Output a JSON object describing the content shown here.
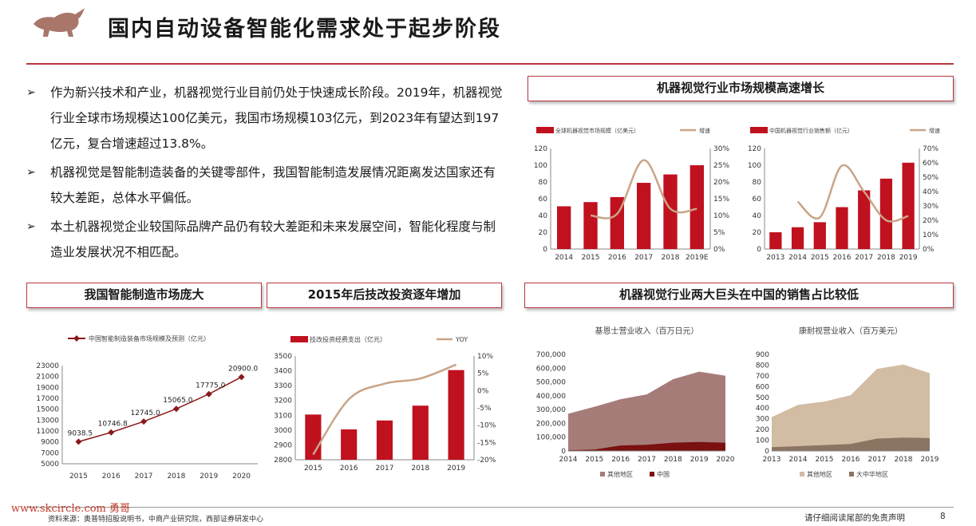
{
  "header": {
    "title": "国内自动设备智能化需求处于起步阶段"
  },
  "bullets": [
    "作为新兴技术和产业，机器视觉行业目前仍处于快速成长阶段。2019年，机器视觉行业全球市场规模达100亿美元，我国市场规模103亿元，到2023年有望达到197亿元，复合增速超过13.8%。",
    "机器视觉是智能制造装备的关键零部件，我国智能制造发展情况距离发达国家还有较大差距，总体水平偏低。",
    "本土机器视觉企业较国际品牌产品仍有较大差距和未来发展空间，智能化程度与制造业发展状况不相匹配。"
  ],
  "boxes": {
    "market_growth": "机器视觉行业市场规模高速增长",
    "smart_mfg": "我国智能制造市场庞大",
    "tech_invest": "2015年后技改投资逐年增加",
    "giants": "机器视觉行业两大巨头在中国的销售占比较低"
  },
  "colors": {
    "accent": "#b8383f",
    "bar": "#c0111f",
    "line": "#c9a487",
    "dark_red": "#8b1a1a"
  },
  "chart_data": [
    {
      "id": "global",
      "type": "bar",
      "legend": [
        "全球机器视觉市场规模（亿美元）",
        "增速"
      ],
      "categories": [
        "2014",
        "2015",
        "2016",
        "2017",
        "2018",
        "2019E"
      ],
      "series": [
        {
          "name": "全球机器视觉市场规模（亿美元）",
          "values": [
            51,
            56,
            62,
            79,
            89,
            100
          ]
        },
        {
          "name": "增速",
          "values": [
            null,
            10.0,
            10.5,
            26.5,
            12.0,
            12.0
          ]
        }
      ],
      "ylim": [
        0,
        120
      ],
      "yticks": [
        "0",
        "20",
        "40",
        "60",
        "80",
        "100",
        "120"
      ],
      "y2lim": [
        0,
        30
      ],
      "y2ticks": [
        "0%",
        "5%",
        "10%",
        "15%",
        "20%",
        "25%",
        "30%"
      ]
    },
    {
      "id": "china_mv",
      "type": "bar",
      "legend": [
        "中国机器视觉行业销售额（亿元）",
        "增速"
      ],
      "categories": [
        "2013",
        "2014",
        "2015",
        "2016",
        "2017",
        "2018",
        "2019"
      ],
      "series": [
        {
          "name": "中国机器视觉行业销售额（亿元）",
          "values": [
            20,
            26,
            32,
            50,
            70,
            84,
            103
          ]
        },
        {
          "name": "增速",
          "values": [
            null,
            33,
            22,
            58,
            40,
            20,
            23
          ]
        }
      ],
      "ylim": [
        0,
        120
      ],
      "yticks": [
        "0",
        "20",
        "40",
        "60",
        "80",
        "100",
        "120"
      ],
      "y2lim": [
        0,
        70
      ],
      "y2ticks": [
        "0%",
        "10%",
        "20%",
        "30%",
        "40%",
        "50%",
        "60%",
        "70%"
      ]
    },
    {
      "id": "smart_mfg",
      "type": "line",
      "legend": [
        "中国智能制造装备市场规模及预测（亿元）"
      ],
      "categories": [
        "2015",
        "2016",
        "2017",
        "2018",
        "2019",
        "2020"
      ],
      "series": [
        {
          "name": "中国智能制造装备市场规模及预测（亿元）",
          "values": [
            9038.5,
            10746.8,
            12745.0,
            15065.0,
            17775.0,
            20900.0
          ],
          "labels": [
            "9038.5",
            "10746.8",
            "12745.0",
            "15065.0",
            "17775.0",
            "20900.0"
          ]
        }
      ],
      "ylim": [
        5000,
        23000
      ],
      "yticks": [
        "5000",
        "7000",
        "9000",
        "11000",
        "13000",
        "15000",
        "17000",
        "19000",
        "21000",
        "23000"
      ]
    },
    {
      "id": "tech_invest",
      "type": "bar",
      "legend": [
        "技改投资经费支出（亿元）",
        "YOY"
      ],
      "categories": [
        "2015",
        "2016",
        "2017",
        "2018",
        "2019"
      ],
      "series": [
        {
          "name": "技改投资经费支出（亿元）",
          "values": [
            3105,
            3005,
            3065,
            3165,
            3405
          ]
        },
        {
          "name": "YOY",
          "values": [
            -18.5,
            -2.5,
            2.0,
            3.5,
            7.5
          ]
        }
      ],
      "ylim": [
        2800,
        3500
      ],
      "yticks": [
        "2800",
        "2900",
        "3000",
        "3100",
        "3200",
        "3300",
        "3400",
        "3500"
      ],
      "y2lim": [
        -20,
        10
      ],
      "y2ticks": [
        "-20%",
        "-15%",
        "-10%",
        "-5%",
        "0%",
        "5%",
        "10%"
      ]
    },
    {
      "id": "keyence",
      "type": "area",
      "title": "基恩士营业收入（百万日元）",
      "legend": [
        "其他地区",
        "中国"
      ],
      "categories": [
        "2014",
        "2015",
        "2016",
        "2017",
        "2018",
        "2019",
        "2020"
      ],
      "series": [
        {
          "name": "中国",
          "values": [
            5000,
            10000,
            40000,
            45000,
            60000,
            65000,
            60000
          ]
        },
        {
          "name": "其他地区",
          "values": [
            265000,
            310000,
            335000,
            365000,
            460000,
            510000,
            485000
          ]
        }
      ],
      "ylim": [
        0,
        700000
      ],
      "yticks": [
        "0",
        "100,000",
        "200,000",
        "300,000",
        "400,000",
        "500,000",
        "600,000",
        "700,000"
      ]
    },
    {
      "id": "cognex",
      "type": "area",
      "title": "康耐视营业收入（百万美元）",
      "legend": [
        "其他地区",
        "大中华地区"
      ],
      "categories": [
        "2013",
        "2014",
        "2015",
        "2016",
        "2017",
        "2018",
        "2019"
      ],
      "series": [
        {
          "name": "大中华地区",
          "values": [
            35,
            45,
            55,
            65,
            115,
            125,
            120
          ]
        },
        {
          "name": "其他地区",
          "values": [
            280,
            385,
            405,
            455,
            650,
            680,
            605
          ]
        }
      ],
      "ylim": [
        0,
        900
      ],
      "yticks": [
        "0",
        "100",
        "200",
        "300",
        "400",
        "500",
        "600",
        "700",
        "800",
        "900"
      ]
    }
  ],
  "footer": {
    "watermark": "www.skcircle.com 勇哥",
    "source": "资料来源：奥普特招股说明书，中商产业研究院，西部证券研发中心",
    "disclaimer": "请仔细阅读尾部的免责声明",
    "page": "8"
  }
}
